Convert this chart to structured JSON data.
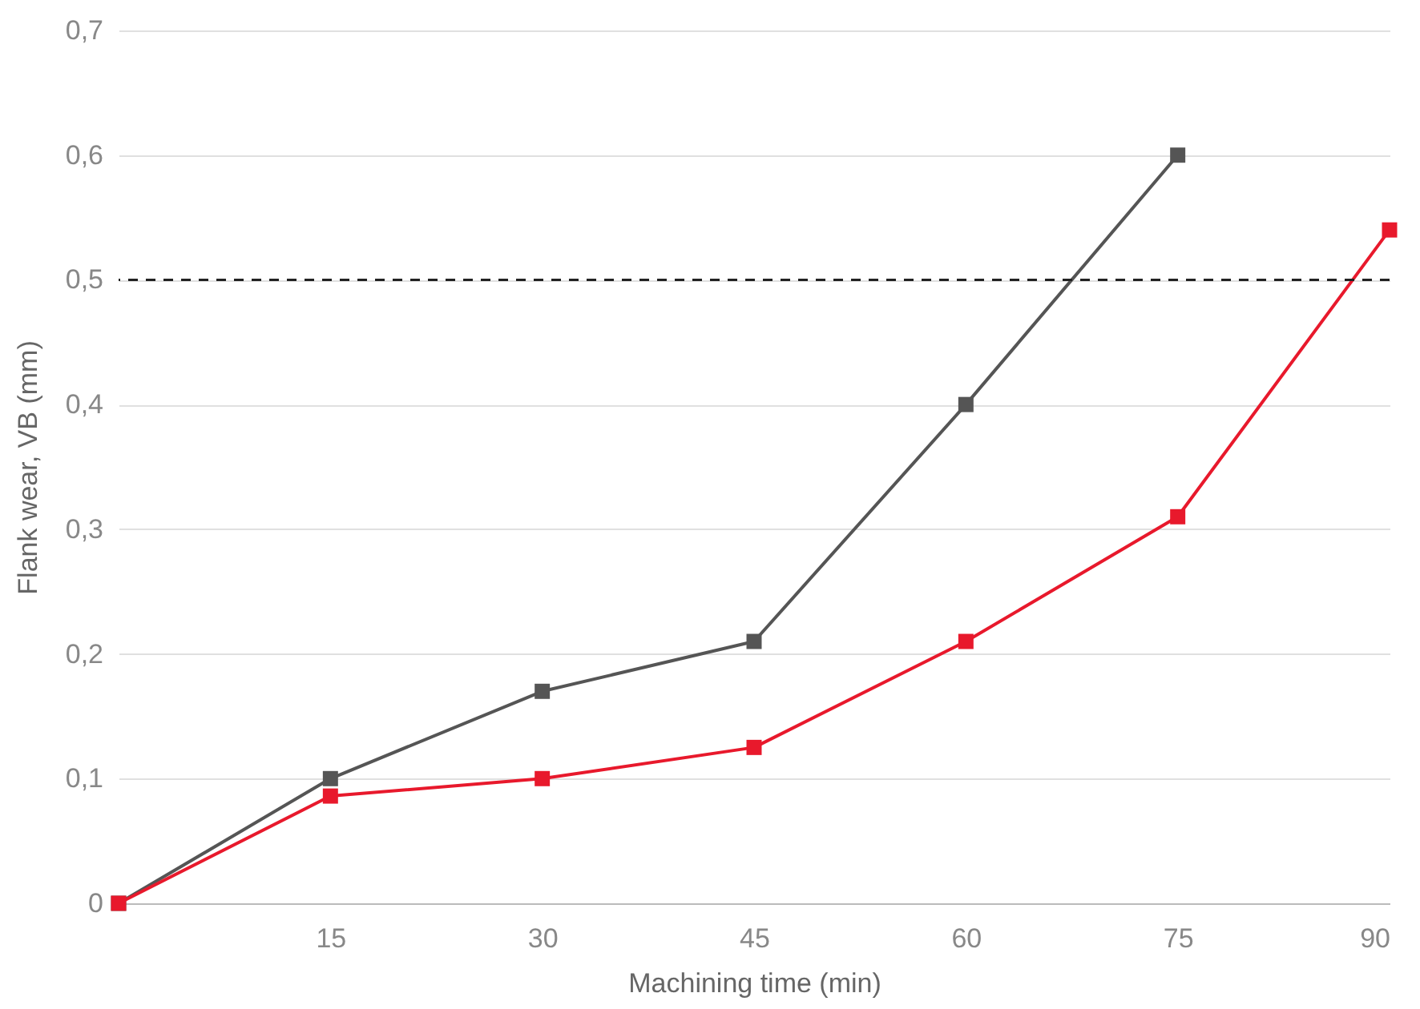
{
  "chart_data": {
    "type": "line",
    "xlabel": "Machining time (min)",
    "ylabel": "Flank wear, VB (mm)",
    "x": [
      0,
      15,
      30,
      45,
      60,
      75,
      90
    ],
    "series": [
      {
        "color": "#555555",
        "values": [
          0,
          0.1,
          0.17,
          0.21,
          0.4,
          0.6,
          null
        ]
      },
      {
        "color": "#e8192c",
        "values": [
          0,
          0.086,
          0.1,
          0.125,
          0.21,
          0.31,
          0.54
        ]
      }
    ],
    "xlim": [
      0,
      90
    ],
    "xticks": [
      15,
      30,
      45,
      60,
      75,
      90
    ],
    "ylim": [
      0,
      0.7
    ],
    "yticks": [
      0,
      {
        "value": 0.1,
        "label": "0,1"
      },
      {
        "value": 0.2,
        "label": "0,2"
      },
      {
        "value": 0.3,
        "label": "0,3"
      },
      {
        "value": 0.4,
        "label": "0,4"
      },
      {
        "value": 0.5,
        "label": "0,5"
      },
      {
        "value": 0.6,
        "label": "0,6"
      },
      {
        "value": 0.7,
        "label": "0,7"
      }
    ],
    "ref_lines": [
      {
        "axis": "y",
        "value": 0.5,
        "color": "#222222",
        "line_style": "dashed"
      }
    ],
    "grid": "y",
    "marker": "square",
    "line_style": "solid"
  }
}
